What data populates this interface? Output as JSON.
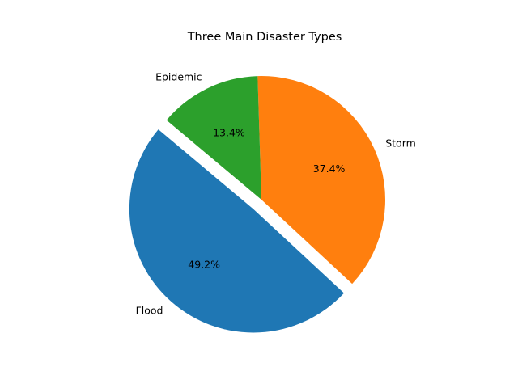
{
  "chart_data": {
    "type": "pie",
    "title": "Three Main Disaster Types",
    "categories": [
      "Flood",
      "Storm",
      "Epidemic"
    ],
    "values": [
      49.2,
      37.4,
      13.4
    ],
    "value_labels": [
      "49.2%",
      "37.4%",
      "13.4%"
    ],
    "colors": [
      "#1f77b4",
      "#ff7f0e",
      "#2ca02c"
    ],
    "explode": [
      0.1,
      0,
      0
    ],
    "start_angle_deg": 140,
    "legend": "none"
  }
}
